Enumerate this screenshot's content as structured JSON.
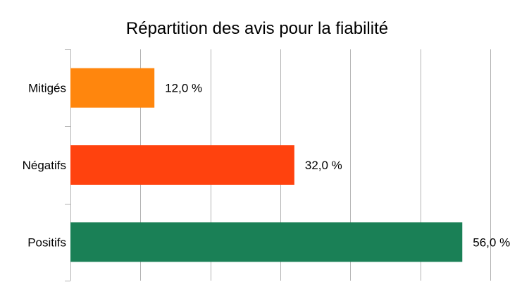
{
  "chart_data": {
    "type": "bar",
    "orientation": "horizontal",
    "title": "Répartition des avis pour la fiabilité",
    "categories": [
      "Mitigés",
      "Négatifs",
      "Positifs"
    ],
    "values": [
      12.0,
      32.0,
      56.0
    ],
    "value_labels": [
      "12,0 %",
      "32,0 %",
      "56,0 %"
    ],
    "colors": [
      "#ff860d",
      "#ff420e",
      "#1a8056"
    ],
    "xlim": [
      0,
      60
    ],
    "x_grid_step": 10,
    "grid": true,
    "legend": "none"
  }
}
